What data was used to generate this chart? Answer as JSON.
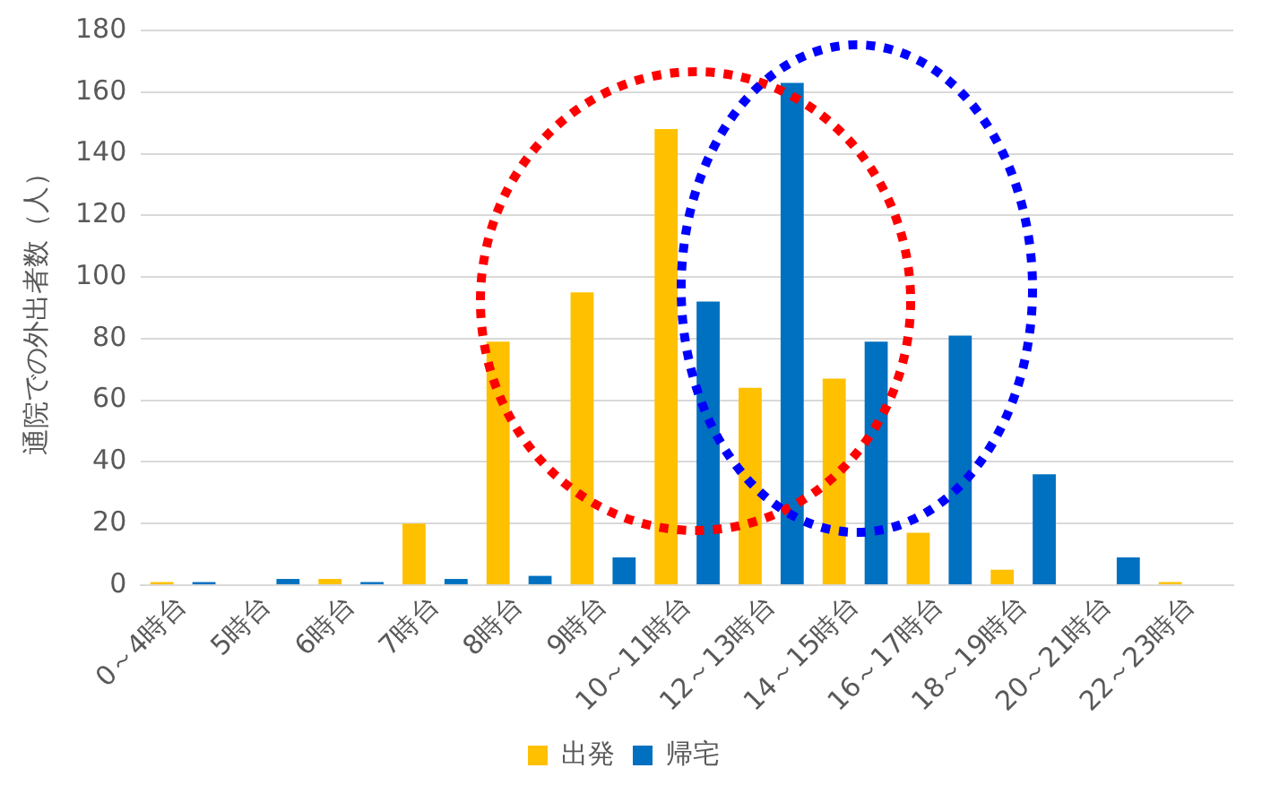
{
  "chart_data": {
    "type": "bar",
    "ylabel": "通院での外出者数（人）",
    "categories": [
      "0～4時台",
      "5時台",
      "6時台",
      "7時台",
      "8時台",
      "9時台",
      "10～11時台",
      "12～13時台",
      "14～15時台",
      "16～17時台",
      "18～19時台",
      "20～21時台",
      "22～23時台"
    ],
    "series": [
      {
        "name": "出発",
        "color": "#ffc000",
        "values": [
          1,
          0,
          2,
          20,
          79,
          95,
          148,
          64,
          67,
          17,
          5,
          0,
          1
        ]
      },
      {
        "name": "帰宅",
        "color": "#0070c0",
        "values": [
          1,
          2,
          1,
          2,
          3,
          9,
          92,
          163,
          79,
          81,
          36,
          9,
          0
        ]
      }
    ],
    "ylim": [
      0,
      180
    ],
    "yticks": [
      0,
      20,
      40,
      60,
      80,
      100,
      120,
      140,
      160,
      180
    ],
    "grid": "y",
    "legend": "bottom"
  }
}
